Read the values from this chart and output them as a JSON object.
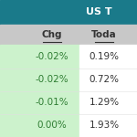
{
  "title": "US T",
  "header_bg": "#1a7a8a",
  "header_text_color": "#ffffff",
  "col_header_bg": "#c8c8c8",
  "col_header_text_color": "#333333",
  "col1_header": "Chg",
  "col2_header": "Toda",
  "chg_values": [
    "-0.02%",
    "-0.02%",
    "-0.01%",
    "0.00%"
  ],
  "today_values": [
    "0.19%",
    "0.72%",
    "1.29%",
    "1.93%"
  ],
  "green_bg": "#ccf2cc",
  "cell_text_color": "#2e7d32",
  "today_text_color": "#333333",
  "figsize": [
    1.5,
    1.5
  ],
  "dpi": 100
}
